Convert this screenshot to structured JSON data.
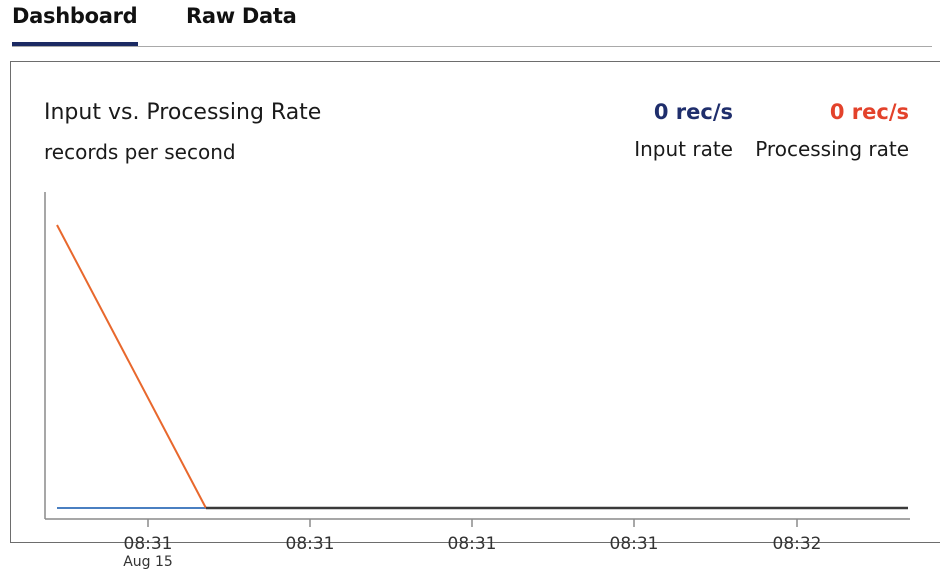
{
  "tabs": [
    {
      "label": "Dashboard",
      "active": true
    },
    {
      "label": "Raw Data",
      "active": false
    }
  ],
  "panel": {
    "title": "Input vs. Processing Rate",
    "subtitle": "records per second",
    "metrics": {
      "input": {
        "value": "0 rec/s",
        "label": "Input rate",
        "color": "#1f2e6c"
      },
      "processing": {
        "value": "0 rec/s",
        "label": "Processing rate",
        "color": "#e3422b"
      }
    }
  },
  "chart_data": {
    "type": "line",
    "x_ticks": [
      "08:31",
      "08:31",
      "08:31",
      "08:31",
      "08:32"
    ],
    "x_tick_sublabels": [
      "Aug 15",
      "",
      "",
      "",
      ""
    ],
    "xlim": [
      0,
      1
    ],
    "ylim": [
      0,
      1
    ],
    "grid": false,
    "series": [
      {
        "name": "Input rate",
        "color": "#4a7fc1",
        "x": [
          0,
          0.175
        ],
        "y": [
          0,
          0
        ]
      },
      {
        "name": "Processing rate",
        "color": "#e8682d",
        "x": [
          0,
          0.175
        ],
        "y": [
          0.9,
          0
        ]
      },
      {
        "name": "",
        "color": "#3a3a3a",
        "x": [
          0.175,
          1
        ],
        "y": [
          0,
          0
        ]
      }
    ]
  }
}
